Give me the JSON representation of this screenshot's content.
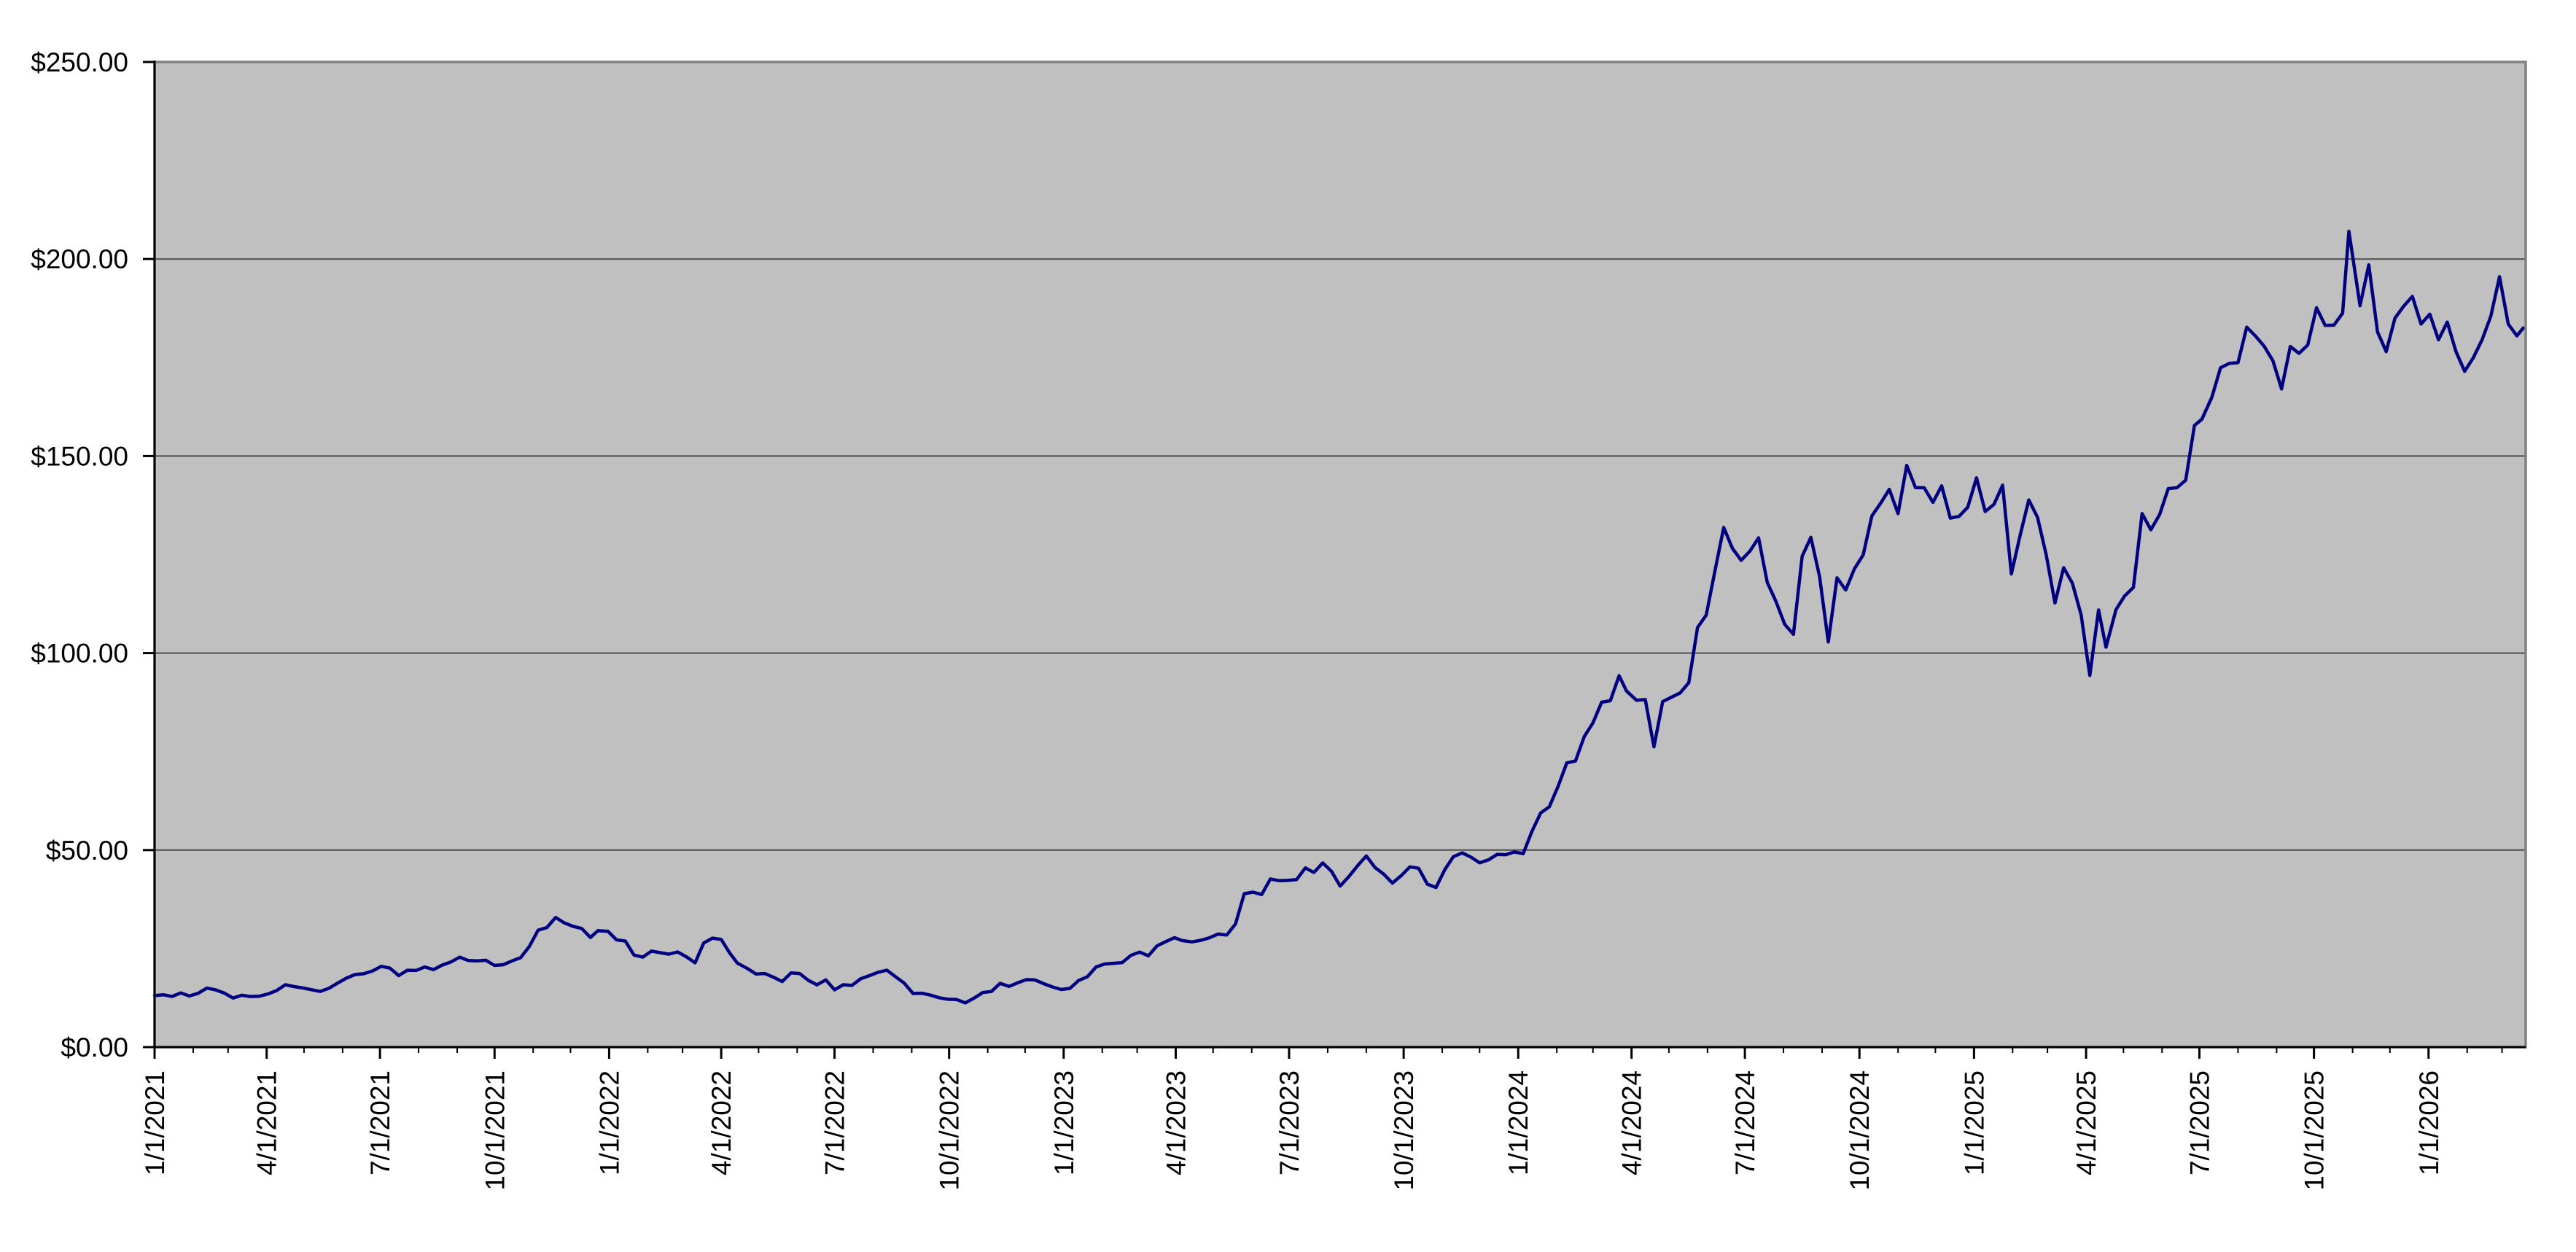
{
  "chart_data": {
    "type": "line",
    "title": "",
    "legend": "none",
    "grid": "horizontal",
    "y_axis": {
      "min": 0,
      "max": 250,
      "step": 50,
      "format": "currency",
      "tick_labels": [
        "$0.00",
        "$50.00",
        "$100.00",
        "$150.00",
        "$200.00",
        "$250.00"
      ]
    },
    "x_axis": {
      "range": [
        "1/1/2021",
        "3/20/2026"
      ],
      "minor_ticks": "monthly",
      "tick_labels": [
        "1/1/2021",
        "4/1/2021",
        "7/1/2021",
        "10/1/2021",
        "1/1/2022",
        "4/1/2022",
        "7/1/2022",
        "10/1/2022",
        "1/1/2023",
        "4/1/2023",
        "7/1/2023",
        "10/1/2023",
        "1/1/2024",
        "4/1/2024",
        "7/1/2024",
        "10/1/2024",
        "1/1/2025",
        "4/1/2025",
        "7/1/2025",
        "10/1/2025",
        "1/1/2026"
      ]
    },
    "colors": {
      "page_bg": "#ffffff",
      "plot_bg": "#c0c0c0",
      "plot_border": "#808080",
      "gridline": "#4d4d4d",
      "axis": "#000000",
      "text": "#000000",
      "line": "#000080"
    },
    "series": [
      {
        "color": "#000080",
        "points": [
          [
            "1/1/2021",
            13.06
          ],
          [
            "1/8/2021",
            13.28
          ],
          [
            "1/15/2021",
            12.85
          ],
          [
            "1/22/2021",
            13.74
          ],
          [
            "1/29/2021",
            12.97
          ],
          [
            "2/5/2021",
            13.66
          ],
          [
            "2/12/2021",
            14.97
          ],
          [
            "2/19/2021",
            14.52
          ],
          [
            "2/26/2021",
            13.72
          ],
          [
            "3/5/2021",
            12.46
          ],
          [
            "3/12/2021",
            13.16
          ],
          [
            "3/19/2021",
            12.85
          ],
          [
            "3/26/2021",
            12.91
          ],
          [
            "4/2/2021",
            13.48
          ],
          [
            "4/9/2021",
            14.35
          ],
          [
            "4/16/2021",
            15.82
          ],
          [
            "4/23/2021",
            15.35
          ],
          [
            "4/30/2021",
            15.01
          ],
          [
            "5/7/2021",
            14.57
          ],
          [
            "5/14/2021",
            14.11
          ],
          [
            "5/21/2021",
            14.94
          ],
          [
            "5/28/2021",
            16.25
          ],
          [
            "6/4/2021",
            17.48
          ],
          [
            "6/11/2021",
            18.41
          ],
          [
            "6/18/2021",
            18.62
          ],
          [
            "6/25/2021",
            19.31
          ],
          [
            "7/2/2021",
            20.5
          ],
          [
            "7/9/2021",
            20.04
          ],
          [
            "7/16/2021",
            18.15
          ],
          [
            "7/23/2021",
            19.51
          ],
          [
            "7/30/2021",
            19.45
          ],
          [
            "8/6/2021",
            20.33
          ],
          [
            "8/13/2021",
            19.67
          ],
          [
            "8/20/2021",
            20.82
          ],
          [
            "8/27/2021",
            21.62
          ],
          [
            "9/3/2021",
            22.81
          ],
          [
            "9/10/2021",
            21.96
          ],
          [
            "9/17/2021",
            21.88
          ],
          [
            "9/24/2021",
            22.03
          ],
          [
            "10/1/2021",
            20.73
          ],
          [
            "10/8/2021",
            20.91
          ],
          [
            "10/15/2021",
            21.87
          ],
          [
            "10/22/2021",
            22.68
          ],
          [
            "10/29/2021",
            25.58
          ],
          [
            "11/5/2021",
            29.68
          ],
          [
            "11/12/2021",
            30.33
          ],
          [
            "11/19/2021",
            32.9
          ],
          [
            "11/26/2021",
            31.53
          ],
          [
            "12/3/2021",
            30.64
          ],
          [
            "12/10/2021",
            30.11
          ],
          [
            "12/17/2021",
            27.81
          ],
          [
            "12/23/2021",
            29.54
          ],
          [
            "12/31/2021",
            29.41
          ],
          [
            "1/7/2022",
            27.2
          ],
          [
            "1/14/2022",
            26.93
          ],
          [
            "1/21/2022",
            23.35
          ],
          [
            "1/28/2022",
            22.84
          ],
          [
            "2/4/2022",
            24.35
          ],
          [
            "2/11/2022",
            23.96
          ],
          [
            "2/18/2022",
            23.6
          ],
          [
            "2/25/2022",
            24.14
          ],
          [
            "3/4/2022",
            22.93
          ],
          [
            "3/11/2022",
            21.39
          ],
          [
            "3/18/2022",
            26.45
          ],
          [
            "3/25/2022",
            27.64
          ],
          [
            "4/1/2022",
            27.33
          ],
          [
            "4/8/2022",
            23.8
          ],
          [
            "4/14/2022",
            21.31
          ],
          [
            "4/22/2022",
            19.94
          ],
          [
            "4/29/2022",
            18.55
          ],
          [
            "5/6/2022",
            18.67
          ],
          [
            "5/13/2022",
            17.73
          ],
          [
            "5/20/2022",
            16.64
          ],
          [
            "5/27/2022",
            18.82
          ],
          [
            "6/3/2022",
            18.68
          ],
          [
            "6/10/2022",
            16.94
          ],
          [
            "6/17/2022",
            15.8
          ],
          [
            "6/24/2022",
            17.07
          ],
          [
            "7/1/2022",
            14.55
          ],
          [
            "7/8/2022",
            15.82
          ],
          [
            "7/15/2022",
            15.66
          ],
          [
            "7/22/2022",
            17.33
          ],
          [
            "7/29/2022",
            18.14
          ],
          [
            "8/5/2022",
            18.99
          ],
          [
            "8/12/2022",
            19.53
          ],
          [
            "8/19/2022",
            17.83
          ],
          [
            "8/26/2022",
            16.23
          ],
          [
            "9/2/2022",
            13.61
          ],
          [
            "9/9/2022",
            13.67
          ],
          [
            "9/16/2022",
            13.19
          ],
          [
            "9/23/2022",
            12.53
          ],
          [
            "9/30/2022",
            12.14
          ],
          [
            "10/7/2022",
            12.08
          ],
          [
            "10/14/2022",
            11.22
          ],
          [
            "10/21/2022",
            12.42
          ],
          [
            "10/28/2022",
            13.84
          ],
          [
            "11/4/2022",
            14.12
          ],
          [
            "11/11/2022",
            16.2
          ],
          [
            "11/18/2022",
            15.4
          ],
          [
            "11/25/2022",
            16.31
          ],
          [
            "12/2/2022",
            17.11
          ],
          [
            "12/9/2022",
            17.04
          ],
          [
            "12/16/2022",
            16.1
          ],
          [
            "12/23/2022",
            15.26
          ],
          [
            "12/30/2022",
            14.61
          ],
          [
            "1/6/2023",
            14.9
          ],
          [
            "1/13/2023",
            16.9
          ],
          [
            "1/20/2023",
            17.84
          ],
          [
            "1/27/2023",
            20.34
          ],
          [
            "2/3/2023",
            21.1
          ],
          [
            "2/10/2023",
            21.27
          ],
          [
            "2/17/2023",
            21.44
          ],
          [
            "2/24/2023",
            23.28
          ],
          [
            "3/3/2023",
            24.12
          ],
          [
            "3/10/2023",
            23.17
          ],
          [
            "3/17/2023",
            25.7
          ],
          [
            "3/24/2023",
            26.77
          ],
          [
            "3/31/2023",
            27.78
          ],
          [
            "4/6/2023",
            27.03
          ],
          [
            "4/14/2023",
            26.71
          ],
          [
            "4/21/2023",
            27.09
          ],
          [
            "4/28/2023",
            27.74
          ],
          [
            "5/5/2023",
            28.69
          ],
          [
            "5/12/2023",
            28.44
          ],
          [
            "5/19/2023",
            31.26
          ],
          [
            "5/26/2023",
            38.93
          ],
          [
            "6/2/2023",
            39.33
          ],
          [
            "6/9/2023",
            38.71
          ],
          [
            "6/16/2023",
            42.67
          ],
          [
            "6/23/2023",
            42.22
          ],
          [
            "6/30/2023",
            42.3
          ],
          [
            "7/7/2023",
            42.51
          ],
          [
            "7/14/2023",
            45.47
          ],
          [
            "7/21/2023",
            44.32
          ],
          [
            "7/28/2023",
            46.74
          ],
          [
            "8/4/2023",
            44.65
          ],
          [
            "8/11/2023",
            40.87
          ],
          [
            "8/18/2023",
            43.28
          ],
          [
            "8/25/2023",
            46.02
          ],
          [
            "9/1/2023",
            48.51
          ],
          [
            "9/8/2023",
            45.57
          ],
          [
            "9/15/2023",
            43.9
          ],
          [
            "9/22/2023",
            41.62
          ],
          [
            "9/29/2023",
            43.5
          ],
          [
            "10/6/2023",
            45.72
          ],
          [
            "10/13/2023",
            45.39
          ],
          [
            "10/20/2023",
            41.36
          ],
          [
            "10/27/2023",
            40.5
          ],
          [
            "11/3/2023",
            45.0
          ],
          [
            "11/10/2023",
            48.33
          ],
          [
            "11/17/2023",
            49.28
          ],
          [
            "11/24/2023",
            48.23
          ],
          [
            "12/1/2023",
            46.77
          ],
          [
            "12/8/2023",
            47.51
          ],
          [
            "12/15/2023",
            48.89
          ],
          [
            "12/22/2023",
            48.83
          ],
          [
            "12/29/2023",
            49.52
          ],
          [
            "1/5/2024",
            49.09
          ],
          [
            "1/12/2024",
            54.71
          ],
          [
            "1/19/2024",
            59.42
          ],
          [
            "1/26/2024",
            61.0
          ],
          [
            "2/2/2024",
            66.16
          ],
          [
            "2/9/2024",
            72.13
          ],
          [
            "2/16/2024",
            72.61
          ],
          [
            "2/23/2024",
            78.8
          ],
          [
            "3/1/2024",
            82.28
          ],
          [
            "3/8/2024",
            87.52
          ],
          [
            "3/15/2024",
            87.89
          ],
          [
            "3/22/2024",
            94.27
          ],
          [
            "3/28/2024",
            90.36
          ],
          [
            "4/5/2024",
            88.01
          ],
          [
            "4/12/2024",
            88.19
          ],
          [
            "4/19/2024",
            76.2
          ],
          [
            "4/26/2024",
            87.7
          ],
          [
            "5/3/2024",
            88.79
          ],
          [
            "5/10/2024",
            89.87
          ],
          [
            "5/17/2024",
            92.48
          ],
          [
            "5/24/2024",
            106.47
          ],
          [
            "5/31/2024",
            109.63
          ],
          [
            "6/7/2024",
            120.89
          ],
          [
            "6/14/2024",
            131.88
          ],
          [
            "6/21/2024",
            126.57
          ],
          [
            "6/28/2024",
            123.54
          ],
          [
            "7/5/2024",
            125.83
          ],
          [
            "7/12/2024",
            129.24
          ],
          [
            "7/19/2024",
            117.93
          ],
          [
            "7/26/2024",
            113.06
          ],
          [
            "8/2/2024",
            107.27
          ],
          [
            "8/9/2024",
            104.75
          ],
          [
            "8/16/2024",
            124.58
          ],
          [
            "8/23/2024",
            129.37
          ],
          [
            "8/30/2024",
            119.37
          ],
          [
            "9/6/2024",
            102.83
          ],
          [
            "9/13/2024",
            119.1
          ],
          [
            "9/20/2024",
            116.0
          ],
          [
            "9/27/2024",
            121.4
          ],
          [
            "10/4/2024",
            124.92
          ],
          [
            "10/11/2024",
            134.8
          ],
          [
            "10/18/2024",
            138.0
          ],
          [
            "10/25/2024",
            141.54
          ],
          [
            "11/1/2024",
            135.4
          ],
          [
            "11/8/2024",
            147.63
          ],
          [
            "11/15/2024",
            141.98
          ],
          [
            "11/22/2024",
            141.95
          ],
          [
            "11/29/2024",
            138.25
          ],
          [
            "12/6/2024",
            142.44
          ],
          [
            "12/13/2024",
            134.25
          ],
          [
            "12/20/2024",
            134.7
          ],
          [
            "12/27/2024",
            137.01
          ],
          [
            "1/3/2025",
            144.47
          ],
          [
            "1/10/2025",
            135.91
          ],
          [
            "1/17/2025",
            137.71
          ],
          [
            "1/24/2025",
            142.62
          ],
          [
            "1/31/2025",
            120.07
          ],
          [
            "2/7/2025",
            129.84
          ],
          [
            "2/14/2025",
            138.85
          ],
          [
            "2/21/2025",
            134.43
          ],
          [
            "2/28/2025",
            124.92
          ],
          [
            "3/7/2025",
            112.69
          ],
          [
            "3/14/2025",
            121.67
          ],
          [
            "3/21/2025",
            117.7
          ],
          [
            "3/28/2025",
            109.67
          ],
          [
            "4/4/2025",
            94.31
          ],
          [
            "4/11/2025",
            110.93
          ],
          [
            "4/17/2025",
            101.49
          ],
          [
            "4/25/2025",
            111.01
          ],
          [
            "5/2/2025",
            114.5
          ],
          [
            "5/9/2025",
            116.65
          ],
          [
            "5/16/2025",
            135.4
          ],
          [
            "5/23/2025",
            131.29
          ],
          [
            "5/30/2025",
            135.13
          ],
          [
            "6/6/2025",
            141.72
          ],
          [
            "6/13/2025",
            141.97
          ],
          [
            "6/20/2025",
            143.85
          ],
          [
            "6/27/2025",
            157.75
          ],
          [
            "7/3/2025",
            159.34
          ],
          [
            "7/11/2025",
            164.92
          ],
          [
            "7/18/2025",
            172.41
          ],
          [
            "7/25/2025",
            173.5
          ],
          [
            "8/1/2025",
            173.72
          ],
          [
            "8/8/2025",
            182.7
          ],
          [
            "8/15/2025",
            180.45
          ],
          [
            "8/22/2025",
            177.87
          ],
          [
            "8/29/2025",
            174.18
          ],
          [
            "9/5/2025",
            167.02
          ],
          [
            "9/12/2025",
            177.82
          ],
          [
            "9/19/2025",
            176.06
          ],
          [
            "9/26/2025",
            178.19
          ],
          [
            "10/3/2025",
            187.62
          ],
          [
            "10/10/2025",
            183.16
          ],
          [
            "10/17/2025",
            183.22
          ],
          [
            "10/24/2025",
            186.26
          ],
          [
            "10/29/2025",
            207.04
          ],
          [
            "10/31/2025",
            202.89
          ],
          [
            "11/7/2025",
            188.15
          ],
          [
            "11/14/2025",
            198.5
          ],
          [
            "11/21/2025",
            181.5
          ],
          [
            "11/28/2025",
            176.5
          ],
          [
            "12/5/2025",
            185.0
          ],
          [
            "12/12/2025",
            188.0
          ],
          [
            "12/19/2025",
            190.5
          ],
          [
            "12/26/2025",
            183.5
          ],
          [
            "1/2/2026",
            186.0
          ],
          [
            "1/9/2026",
            179.5
          ],
          [
            "1/16/2026",
            184.0
          ],
          [
            "1/23/2026",
            176.5
          ],
          [
            "1/30/2026",
            171.5
          ],
          [
            "2/6/2026",
            175.0
          ],
          [
            "2/13/2026",
            179.5
          ],
          [
            "2/20/2026",
            185.5
          ],
          [
            "2/27/2026",
            195.5
          ],
          [
            "3/6/2026",
            183.5
          ],
          [
            "3/13/2026",
            180.5
          ],
          [
            "3/18/2026",
            182.5
          ]
        ]
      }
    ]
  }
}
